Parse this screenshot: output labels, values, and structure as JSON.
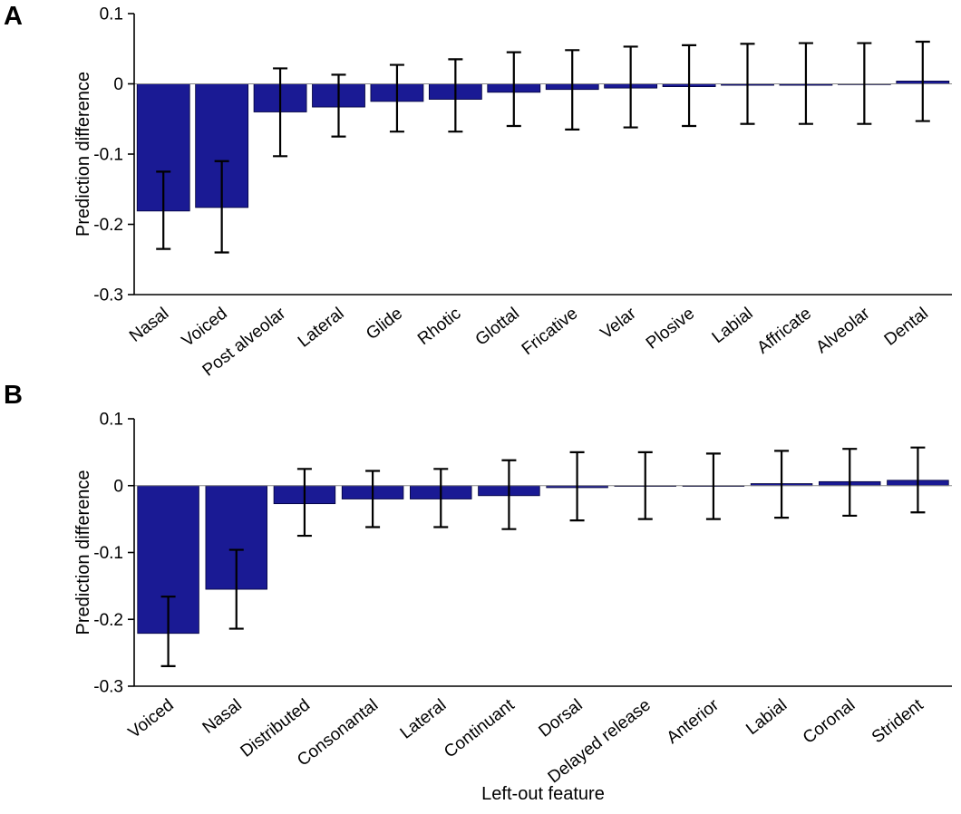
{
  "panels": [
    {
      "label": "A"
    },
    {
      "label": "B"
    }
  ],
  "chart_data": [
    {
      "type": "bar",
      "panel": "A",
      "title": "",
      "xlabel": "",
      "ylabel": "Prediction difference",
      "ylim": [
        -0.3,
        0.1
      ],
      "yticks": [
        0.1,
        0,
        -0.1,
        -0.2,
        -0.3
      ],
      "ytick_labels": [
        "0.1",
        "0",
        "-0.1",
        "-0.2",
        "-0.3"
      ],
      "grid": false,
      "legend": null,
      "bar_color": "#1a1a94",
      "bar_edge_color": "#00003a",
      "error_bar_color": "#000000",
      "zero_line_color": "#888888",
      "categories": [
        "Nasal",
        "Voiced",
        "Post alveolar",
        "Lateral",
        "Glide",
        "Rhotic",
        "Glottal",
        "Fricative",
        "Velar",
        "Plosive",
        "Labial",
        "Affricate",
        "Alveolar",
        "Dental"
      ],
      "values": [
        -0.181,
        -0.176,
        -0.04,
        -0.033,
        -0.025,
        -0.022,
        -0.012,
        -0.008,
        -0.006,
        -0.004,
        -0.002,
        -0.002,
        -0.001,
        0.004
      ],
      "error_low": [
        -0.235,
        -0.24,
        -0.103,
        -0.075,
        -0.068,
        -0.068,
        -0.06,
        -0.065,
        -0.062,
        -0.06,
        -0.057,
        -0.057,
        -0.057,
        -0.053
      ],
      "error_high": [
        -0.125,
        -0.11,
        0.022,
        0.013,
        0.027,
        0.035,
        0.045,
        0.048,
        0.053,
        0.055,
        0.057,
        0.058,
        0.058,
        0.06
      ]
    },
    {
      "type": "bar",
      "panel": "B",
      "title": "",
      "xlabel": "Left-out feature",
      "ylabel": "Prediction difference",
      "ylim": [
        -0.3,
        0.1
      ],
      "yticks": [
        0.1,
        0,
        -0.1,
        -0.2,
        -0.3
      ],
      "ytick_labels": [
        "0.1",
        "0",
        "-0.1",
        "-0.2",
        "-0.3"
      ],
      "grid": false,
      "legend": null,
      "bar_color": "#1a1a94",
      "bar_edge_color": "#00003a",
      "error_bar_color": "#000000",
      "zero_line_color": "#888888",
      "categories": [
        "Voiced",
        "Nasal",
        "Distributed",
        "Consonantal",
        "Lateral",
        "Continuant",
        "Dorsal",
        "Delayed release",
        "Anterior",
        "Labial",
        "Coronal",
        "Strident"
      ],
      "values": [
        -0.221,
        -0.155,
        -0.027,
        -0.02,
        -0.02,
        -0.015,
        -0.003,
        -0.001,
        -0.001,
        0.003,
        0.006,
        0.008
      ],
      "error_low": [
        -0.27,
        -0.214,
        -0.075,
        -0.062,
        -0.062,
        -0.065,
        -0.052,
        -0.05,
        -0.05,
        -0.048,
        -0.045,
        -0.04
      ],
      "error_high": [
        -0.166,
        -0.096,
        0.025,
        0.022,
        0.025,
        0.038,
        0.05,
        0.05,
        0.048,
        0.052,
        0.055,
        0.057
      ]
    }
  ]
}
